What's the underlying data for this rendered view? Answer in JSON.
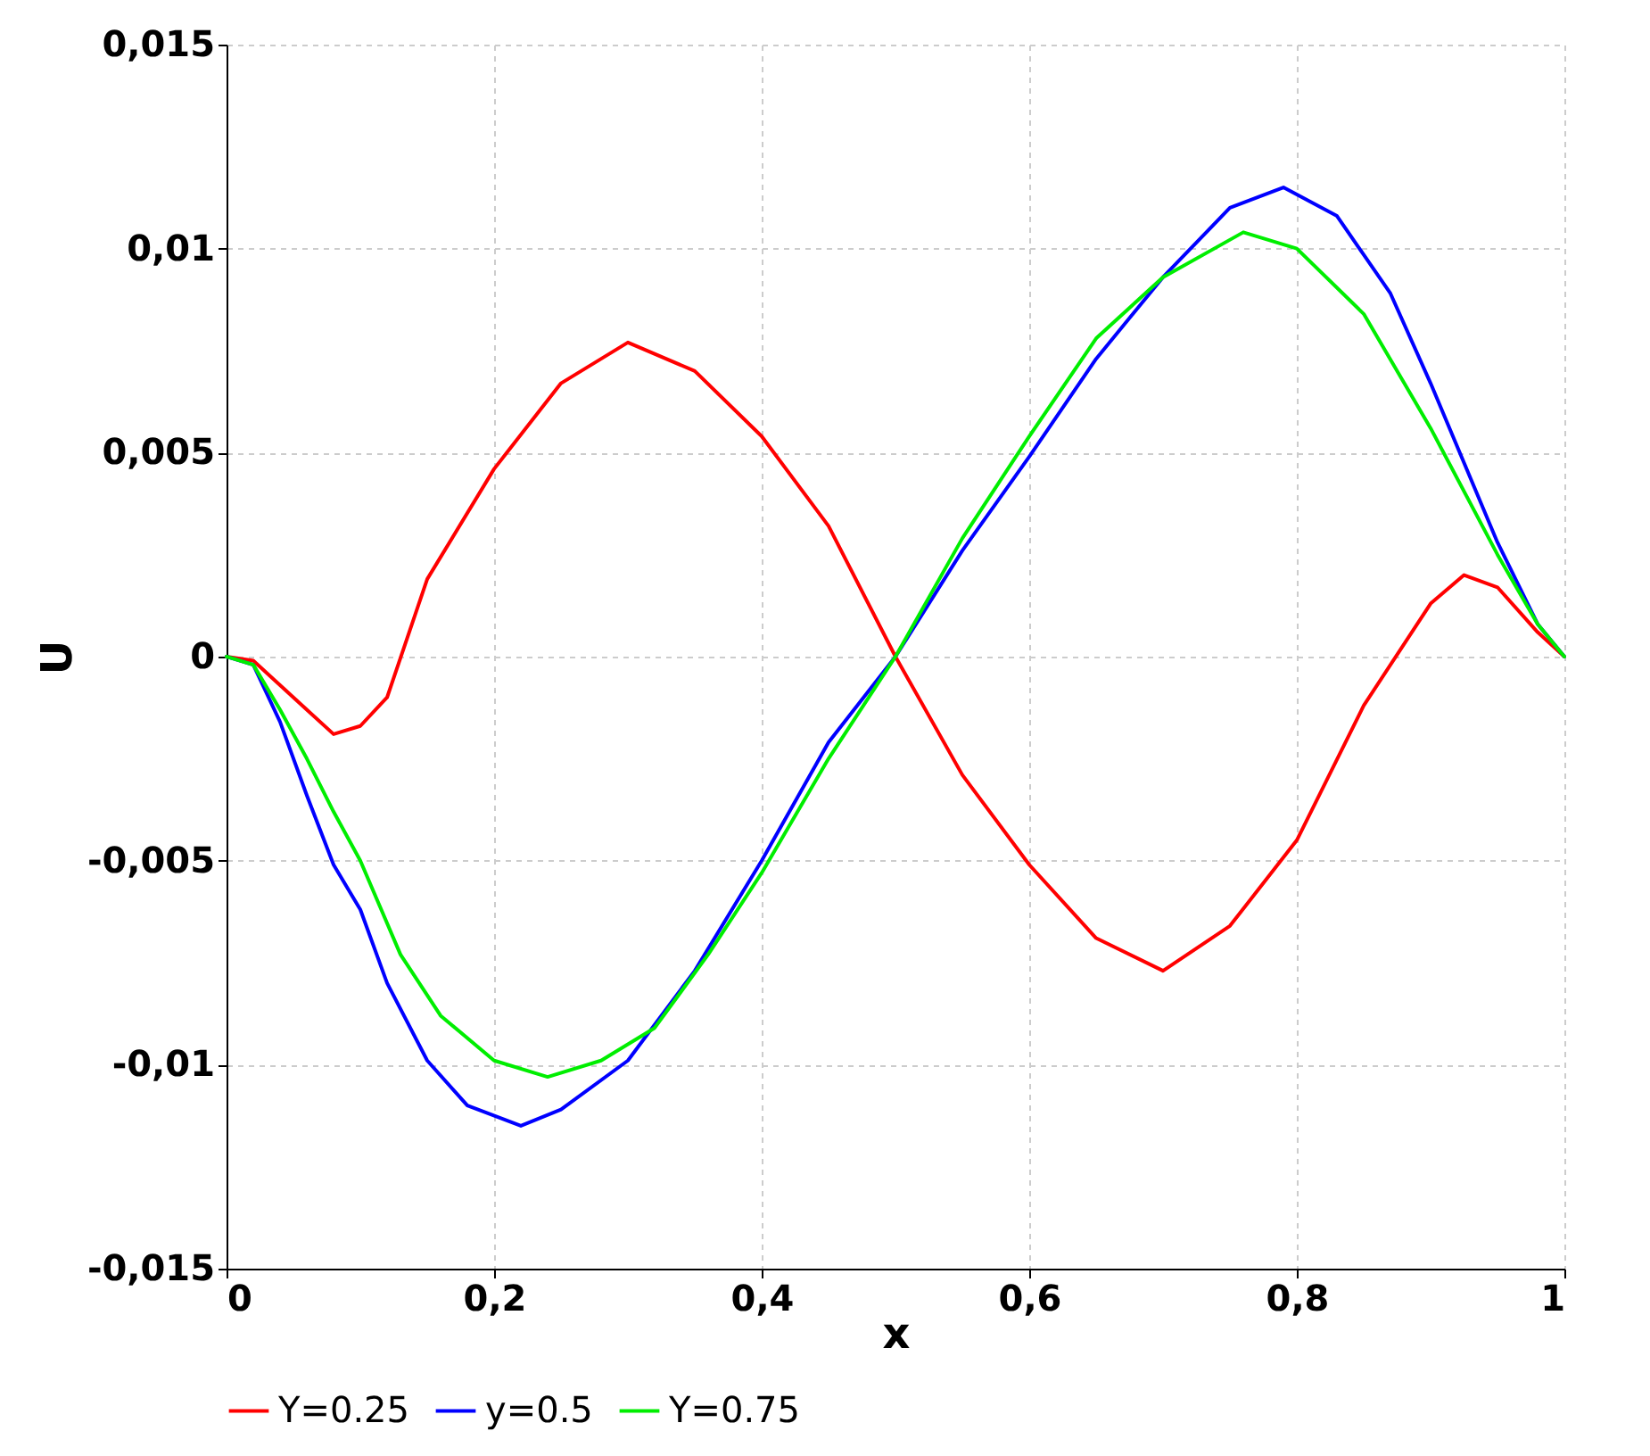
{
  "chart_data": {
    "type": "line",
    "xlabel": "x",
    "ylabel": "U",
    "xlim": [
      0,
      1
    ],
    "ylim": [
      -0.015,
      0.015
    ],
    "xticks": [
      0,
      {
        "value": 0.2,
        "label": "0,2"
      },
      {
        "value": 0.4,
        "label": "0,4"
      },
      {
        "value": 0.6,
        "label": "0,6"
      },
      {
        "value": 0.8,
        "label": "0,8"
      },
      1
    ],
    "yticks": [
      {
        "value": -0.015,
        "label": "-0,015"
      },
      {
        "value": -0.01,
        "label": "-0,01"
      },
      {
        "value": -0.005,
        "label": "-0,005"
      },
      0,
      {
        "value": 0.005,
        "label": "0,005"
      },
      {
        "value": 0.01,
        "label": "0,01"
      },
      {
        "value": 0.015,
        "label": "0,015"
      }
    ],
    "grid": true,
    "legend": "bottom",
    "series": [
      {
        "name": "Y=0.25",
        "color": "#ff0000",
        "x": [
          0,
          0.02,
          0.04,
          0.06,
          0.08,
          0.1,
          0.12,
          0.15,
          0.2,
          0.25,
          0.3,
          0.35,
          0.4,
          0.45,
          0.5,
          0.55,
          0.6,
          0.65,
          0.7,
          0.75,
          0.8,
          0.85,
          0.9,
          0.925,
          0.95,
          0.98,
          1
        ],
        "values": [
          0,
          -0.0001,
          -0.0007,
          -0.0013,
          -0.0019,
          -0.0017,
          -0.001,
          0.0019,
          0.0046,
          0.0067,
          0.0077,
          0.007,
          0.0054,
          0.0032,
          0,
          -0.0029,
          -0.0051,
          -0.0069,
          -0.0077,
          -0.0066,
          -0.0045,
          -0.0012,
          0.0013,
          0.002,
          0.0017,
          0.0006,
          0
        ]
      },
      {
        "name": "y=0.5",
        "color": "#0000ff",
        "x": [
          0,
          0.02,
          0.04,
          0.06,
          0.08,
          0.1,
          0.12,
          0.15,
          0.18,
          0.22,
          0.25,
          0.3,
          0.35,
          0.4,
          0.45,
          0.5,
          0.55,
          0.6,
          0.65,
          0.7,
          0.75,
          0.79,
          0.83,
          0.87,
          0.9,
          0.95,
          0.98,
          1
        ],
        "values": [
          0,
          -0.0002,
          -0.0016,
          -0.0034,
          -0.0051,
          -0.0062,
          -0.008,
          -0.0099,
          -0.011,
          -0.0115,
          -0.0111,
          -0.0099,
          -0.0077,
          -0.005,
          -0.0021,
          0,
          0.0026,
          0.0049,
          0.0073,
          0.0093,
          0.011,
          0.0115,
          0.0108,
          0.0089,
          0.0067,
          0.0028,
          0.0008,
          0
        ]
      },
      {
        "name": "Y=0.75",
        "color": "#00ee00",
        "x": [
          0,
          0.02,
          0.04,
          0.06,
          0.08,
          0.1,
          0.13,
          0.16,
          0.2,
          0.24,
          0.28,
          0.32,
          0.36,
          0.4,
          0.45,
          0.5,
          0.55,
          0.6,
          0.65,
          0.7,
          0.76,
          0.8,
          0.85,
          0.9,
          0.95,
          0.98,
          1
        ],
        "values": [
          0,
          -0.0002,
          -0.0013,
          -0.0025,
          -0.0038,
          -0.005,
          -0.0073,
          -0.0088,
          -0.0099,
          -0.0103,
          -0.0099,
          -0.0091,
          -0.0073,
          -0.0053,
          -0.0025,
          0,
          0.0029,
          0.0054,
          0.0078,
          0.0093,
          0.0104,
          0.01,
          0.0084,
          0.0056,
          0.0025,
          0.0008,
          0
        ]
      }
    ]
  }
}
